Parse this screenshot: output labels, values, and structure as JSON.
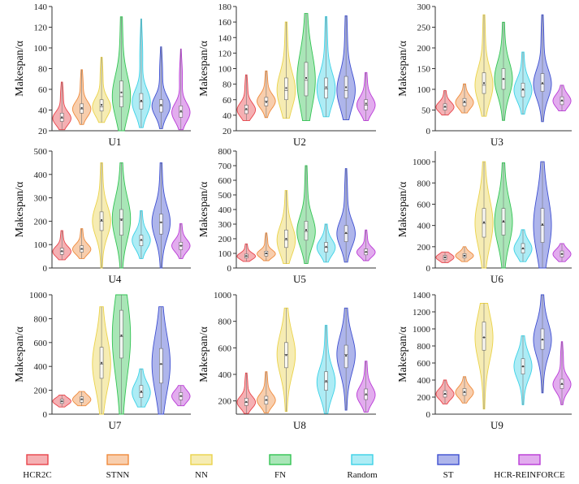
{
  "legend": [
    {
      "name": "HCR2C",
      "color": "#e8434a"
    },
    {
      "name": "STNN",
      "color": "#ef8a3c"
    },
    {
      "name": "NN",
      "color": "#ead24a"
    },
    {
      "name": "FN",
      "color": "#32c353"
    },
    {
      "name": "Random",
      "color": "#3cd1e6"
    },
    {
      "name": "ST",
      "color": "#3e4fd0"
    },
    {
      "name": "HCR-REINFORCE",
      "color": "#b93ad6"
    }
  ],
  "chart_data": [
    {
      "type": "violin",
      "title": "U1",
      "ylabel": "Makespan/α",
      "ylim": [
        20,
        140
      ],
      "yticks": [
        20,
        40,
        60,
        80,
        100,
        120,
        140
      ],
      "series": [
        {
          "name": "HCR2C",
          "min": 21,
          "max": 67,
          "q1": 29,
          "median": 32,
          "q3": 37,
          "mean": 33
        },
        {
          "name": "STNN",
          "min": 26,
          "max": 79,
          "q1": 37,
          "median": 41,
          "q3": 46,
          "mean": 42
        },
        {
          "name": "NN",
          "min": 28,
          "max": 91,
          "q1": 39,
          "median": 43,
          "q3": 50,
          "mean": 45
        },
        {
          "name": "FN",
          "min": 20,
          "max": 130,
          "q1": 43,
          "median": 53,
          "q3": 68,
          "mean": 57
        },
        {
          "name": "Random",
          "min": 23,
          "max": 128,
          "q1": 41,
          "median": 48,
          "q3": 56,
          "mean": 49
        },
        {
          "name": "ST",
          "min": 22,
          "max": 101,
          "q1": 38,
          "median": 44,
          "q3": 50,
          "mean": 45
        },
        {
          "name": "HCR-REINFORCE",
          "min": 21,
          "max": 99,
          "q1": 33,
          "median": 38,
          "q3": 44,
          "mean": 39
        }
      ]
    },
    {
      "type": "violin",
      "title": "U2",
      "ylabel": "Makespan/α",
      "ylim": [
        20,
        180
      ],
      "yticks": [
        20,
        40,
        60,
        80,
        100,
        120,
        140,
        160,
        180
      ],
      "series": [
        {
          "name": "HCR2C",
          "min": 33,
          "max": 92,
          "q1": 42,
          "median": 47,
          "q3": 53,
          "mean": 48
        },
        {
          "name": "STNN",
          "min": 37,
          "max": 97,
          "q1": 52,
          "median": 58,
          "q3": 63,
          "mean": 57
        },
        {
          "name": "NN",
          "min": 36,
          "max": 160,
          "q1": 60,
          "median": 72,
          "q3": 88,
          "mean": 75
        },
        {
          "name": "FN",
          "min": 33,
          "max": 171,
          "q1": 65,
          "median": 85,
          "q3": 108,
          "mean": 88
        },
        {
          "name": "Random",
          "min": 38,
          "max": 167,
          "q1": 62,
          "median": 74,
          "q3": 88,
          "mean": 76
        },
        {
          "name": "ST",
          "min": 34,
          "max": 168,
          "q1": 62,
          "median": 72,
          "q3": 90,
          "mean": 76
        },
        {
          "name": "HCR-REINFORCE",
          "min": 33,
          "max": 95,
          "q1": 47,
          "median": 53,
          "q3": 60,
          "mean": 55
        }
      ]
    },
    {
      "type": "violin",
      "title": "U3",
      "ylabel": "Makespan/α",
      "ylim": [
        0,
        300
      ],
      "yticks": [
        0,
        50,
        100,
        150,
        200,
        250,
        300
      ],
      "series": [
        {
          "name": "HCR2C",
          "min": 38,
          "max": 97,
          "q1": 50,
          "median": 57,
          "q3": 65,
          "mean": 58
        },
        {
          "name": "STNN",
          "min": 43,
          "max": 113,
          "q1": 60,
          "median": 68,
          "q3": 78,
          "mean": 70
        },
        {
          "name": "NN",
          "min": 35,
          "max": 280,
          "q1": 90,
          "median": 110,
          "q3": 140,
          "mean": 115
        },
        {
          "name": "FN",
          "min": 25,
          "max": 262,
          "q1": 100,
          "median": 125,
          "q3": 150,
          "mean": 125
        },
        {
          "name": "Random",
          "min": 40,
          "max": 190,
          "q1": 82,
          "median": 98,
          "q3": 115,
          "mean": 100
        },
        {
          "name": "ST",
          "min": 22,
          "max": 280,
          "q1": 95,
          "median": 113,
          "q3": 138,
          "mean": 115
        },
        {
          "name": "HCR-REINFORCE",
          "min": 48,
          "max": 110,
          "q1": 63,
          "median": 72,
          "q3": 82,
          "mean": 73
        }
      ]
    },
    {
      "type": "violin",
      "title": "U4",
      "ylabel": "Makespan/α",
      "ylim": [
        0,
        500
      ],
      "yticks": [
        0,
        100,
        200,
        300,
        400,
        500
      ],
      "series": [
        {
          "name": "HCR2C",
          "min": 35,
          "max": 160,
          "q1": 58,
          "median": 70,
          "q3": 85,
          "mean": 72
        },
        {
          "name": "STNN",
          "min": 40,
          "max": 168,
          "q1": 68,
          "median": 80,
          "q3": 95,
          "mean": 82
        },
        {
          "name": "NN",
          "min": 0,
          "max": 450,
          "q1": 160,
          "median": 200,
          "q3": 240,
          "mean": 205
        },
        {
          "name": "FN",
          "min": 0,
          "max": 450,
          "q1": 140,
          "median": 210,
          "q3": 250,
          "mean": 205
        },
        {
          "name": "Random",
          "min": 40,
          "max": 245,
          "q1": 95,
          "median": 118,
          "q3": 140,
          "mean": 120
        },
        {
          "name": "ST",
          "min": 0,
          "max": 450,
          "q1": 145,
          "median": 195,
          "q3": 230,
          "mean": 195
        },
        {
          "name": "HCR-REINFORCE",
          "min": 40,
          "max": 190,
          "q1": 78,
          "median": 95,
          "q3": 110,
          "mean": 95
        }
      ]
    },
    {
      "type": "violin",
      "title": "U5",
      "ylabel": "Makespan/α",
      "ylim": [
        0,
        800
      ],
      "yticks": [
        0,
        100,
        200,
        300,
        400,
        500,
        600,
        700,
        800
      ],
      "series": [
        {
          "name": "HCR2C",
          "min": 45,
          "max": 165,
          "q1": 68,
          "median": 80,
          "q3": 95,
          "mean": 82
        },
        {
          "name": "STNN",
          "min": 50,
          "max": 240,
          "q1": 82,
          "median": 97,
          "q3": 115,
          "mean": 100
        },
        {
          "name": "NN",
          "min": 30,
          "max": 530,
          "q1": 140,
          "median": 190,
          "q3": 260,
          "mean": 200
        },
        {
          "name": "FN",
          "min": 30,
          "max": 700,
          "q1": 190,
          "median": 250,
          "q3": 320,
          "mean": 260
        },
        {
          "name": "Random",
          "min": 40,
          "max": 300,
          "q1": 110,
          "median": 140,
          "q3": 175,
          "mean": 145
        },
        {
          "name": "ST",
          "min": 40,
          "max": 680,
          "q1": 180,
          "median": 235,
          "q3": 290,
          "mean": 240
        },
        {
          "name": "HCR-REINFORCE",
          "min": 50,
          "max": 260,
          "q1": 90,
          "median": 108,
          "q3": 130,
          "mean": 110
        }
      ]
    },
    {
      "type": "violin",
      "title": "U6",
      "ylabel": "Makespan/α",
      "ylim": [
        0,
        1100
      ],
      "yticks": [
        0,
        200,
        400,
        600,
        800,
        1000
      ],
      "series": [
        {
          "name": "HCR2C",
          "min": 50,
          "max": 150,
          "q1": 80,
          "median": 100,
          "q3": 118,
          "mean": 100
        },
        {
          "name": "STNN",
          "min": 60,
          "max": 200,
          "q1": 95,
          "median": 115,
          "q3": 135,
          "mean": 115
        },
        {
          "name": "NN",
          "min": 0,
          "max": 1000,
          "q1": 290,
          "median": 420,
          "q3": 560,
          "mean": 430
        },
        {
          "name": "FN",
          "min": 0,
          "max": 990,
          "q1": 310,
          "median": 430,
          "q3": 560,
          "mean": 440
        },
        {
          "name": "Random",
          "min": 60,
          "max": 360,
          "q1": 140,
          "median": 180,
          "q3": 230,
          "mean": 185
        },
        {
          "name": "ST",
          "min": 0,
          "max": 1000,
          "q1": 240,
          "median": 400,
          "q3": 560,
          "mean": 410
        },
        {
          "name": "HCR-REINFORCE",
          "min": 60,
          "max": 230,
          "q1": 105,
          "median": 130,
          "q3": 160,
          "mean": 132
        }
      ]
    },
    {
      "type": "violin",
      "title": "U7",
      "ylabel": "Makespan/α",
      "ylim": [
        0,
        1000
      ],
      "yticks": [
        0,
        200,
        400,
        600,
        800,
        1000
      ],
      "series": [
        {
          "name": "HCR2C",
          "min": 60,
          "max": 160,
          "q1": 90,
          "median": 108,
          "q3": 125,
          "mean": 108
        },
        {
          "name": "STNN",
          "min": 70,
          "max": 190,
          "q1": 100,
          "median": 122,
          "q3": 145,
          "mean": 125
        },
        {
          "name": "NN",
          "min": 0,
          "max": 900,
          "q1": 300,
          "median": 420,
          "q3": 560,
          "mean": 430
        },
        {
          "name": "FN",
          "min": 0,
          "max": 1000,
          "q1": 470,
          "median": 650,
          "q3": 870,
          "mean": 660
        },
        {
          "name": "Random",
          "min": 60,
          "max": 380,
          "q1": 140,
          "median": 180,
          "q3": 240,
          "mean": 190
        },
        {
          "name": "ST",
          "min": 0,
          "max": 900,
          "q1": 260,
          "median": 420,
          "q3": 550,
          "mean": 420
        },
        {
          "name": "HCR-REINFORCE",
          "min": 70,
          "max": 240,
          "q1": 120,
          "median": 150,
          "q3": 180,
          "mean": 152
        }
      ]
    },
    {
      "type": "violin",
      "title": "U8",
      "ylabel": "Makespan/α",
      "ylim": [
        100,
        1000
      ],
      "yticks": [
        200,
        400,
        600,
        800,
        1000
      ],
      "series": [
        {
          "name": "HCR2C",
          "min": 105,
          "max": 410,
          "q1": 165,
          "median": 190,
          "q3": 220,
          "mean": 192
        },
        {
          "name": "STNN",
          "min": 110,
          "max": 420,
          "q1": 175,
          "median": 205,
          "q3": 235,
          "mean": 207
        },
        {
          "name": "NN",
          "min": 120,
          "max": 900,
          "q1": 450,
          "median": 550,
          "q3": 640,
          "mean": 545
        },
        {
          "name": "Random",
          "min": 105,
          "max": 770,
          "q1": 280,
          "median": 340,
          "q3": 420,
          "mean": 350
        },
        {
          "name": "ST",
          "min": 130,
          "max": 900,
          "q1": 450,
          "median": 550,
          "q3": 620,
          "mean": 540
        },
        {
          "name": "HCR-REINFORCE",
          "min": 115,
          "max": 500,
          "q1": 210,
          "median": 245,
          "q3": 290,
          "mean": 250
        }
      ]
    },
    {
      "type": "violin",
      "title": "U9",
      "ylabel": "Makespan/α",
      "ylim": [
        0,
        1400
      ],
      "yticks": [
        0,
        200,
        400,
        600,
        800,
        1000,
        1200,
        1400
      ],
      "series": [
        {
          "name": "HCR2C",
          "min": 120,
          "max": 400,
          "q1": 200,
          "median": 235,
          "q3": 275,
          "mean": 238
        },
        {
          "name": "STNN",
          "min": 130,
          "max": 440,
          "q1": 220,
          "median": 255,
          "q3": 300,
          "mean": 260
        },
        {
          "name": "NN",
          "min": 60,
          "max": 1300,
          "q1": 750,
          "median": 900,
          "q3": 1080,
          "mean": 900
        },
        {
          "name": "Random",
          "min": 110,
          "max": 920,
          "q1": 470,
          "median": 560,
          "q3": 650,
          "mean": 560
        },
        {
          "name": "ST",
          "min": 250,
          "max": 1400,
          "q1": 760,
          "median": 870,
          "q3": 1000,
          "mean": 875
        },
        {
          "name": "HCR-REINFORCE",
          "min": 110,
          "max": 850,
          "q1": 300,
          "median": 350,
          "q3": 410,
          "mean": 355
        }
      ]
    }
  ]
}
